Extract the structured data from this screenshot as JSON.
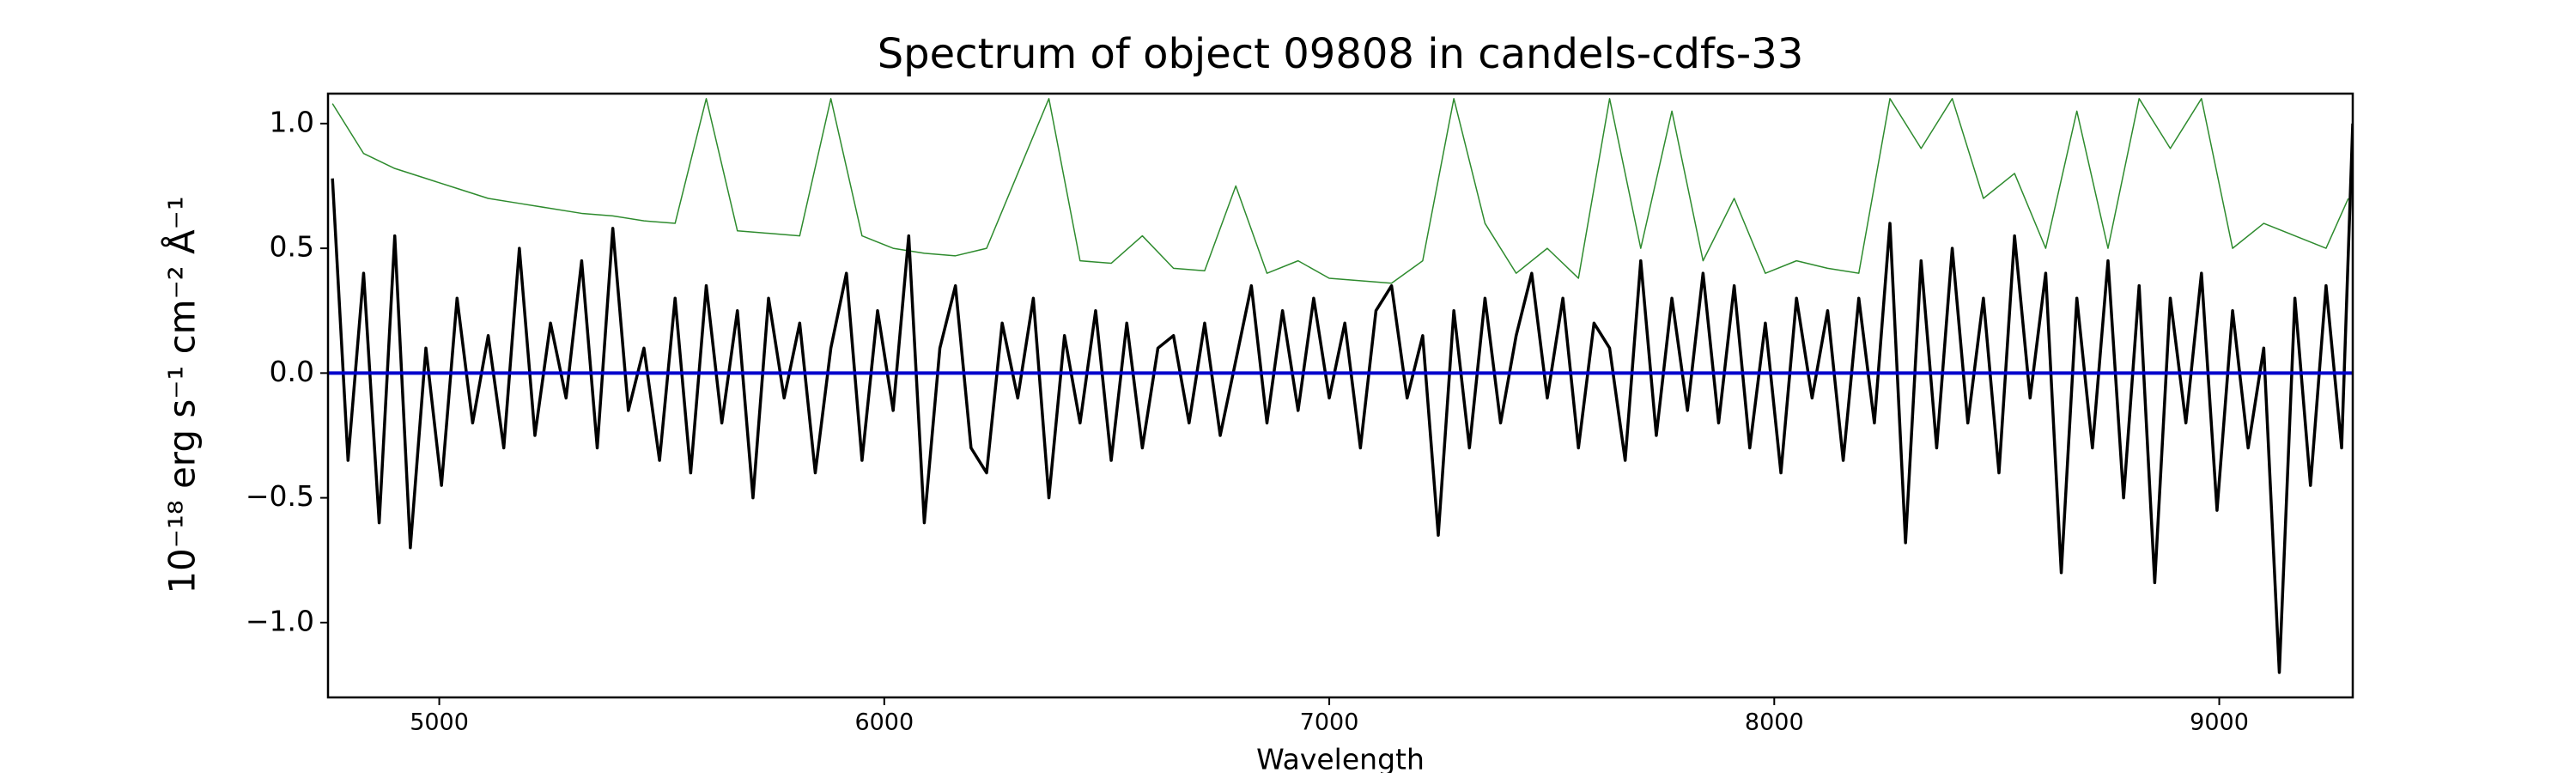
{
  "chart_data": {
    "type": "line",
    "title": "Spectrum of object 09808 in candels-cdfs-33",
    "xlabel": "Wavelength",
    "ylabel": "10⁻¹⁸ erg s⁻¹ cm⁻² Å⁻¹",
    "xlim": [
      4750,
      9300
    ],
    "ylim": [
      -1.3,
      1.12
    ],
    "xticks": [
      5000,
      6000,
      7000,
      8000,
      9000
    ],
    "yticks": [
      {
        "value": -1.0,
        "label": "−1.0"
      },
      {
        "value": -0.5,
        "label": "−0.5"
      },
      {
        "value": 0.0,
        "label": "0.0"
      },
      {
        "value": 0.5,
        "label": "0.5"
      },
      {
        "value": 1.0,
        "label": "1.0"
      }
    ],
    "series": [
      {
        "color": "#2e8b2e",
        "width": 1.5,
        "x": [
          4760,
          4830,
          4900,
          4970,
          5040,
          5110,
          5180,
          5250,
          5320,
          5390,
          5460,
          5530,
          5600,
          5670,
          5740,
          5810,
          5880,
          5950,
          6020,
          6090,
          6160,
          6230,
          6300,
          6370,
          6440,
          6510,
          6580,
          6650,
          6720,
          6790,
          6860,
          6930,
          7000,
          7070,
          7140,
          7210,
          7280,
          7350,
          7420,
          7490,
          7560,
          7630,
          7700,
          7770,
          7840,
          7910,
          7980,
          8050,
          8120,
          8190,
          8260,
          8330,
          8400,
          8470,
          8540,
          8610,
          8680,
          8750,
          8820,
          8890,
          8960,
          9030,
          9100,
          9170,
          9240,
          9290
        ],
        "values": [
          1.08,
          0.88,
          0.82,
          0.78,
          0.74,
          0.7,
          0.68,
          0.66,
          0.64,
          0.63,
          0.61,
          0.6,
          1.1,
          0.57,
          0.56,
          0.55,
          1.1,
          0.55,
          0.5,
          0.48,
          0.47,
          0.5,
          0.8,
          1.1,
          0.45,
          0.44,
          0.55,
          0.42,
          0.41,
          0.75,
          0.4,
          0.45,
          0.38,
          0.37,
          0.36,
          0.45,
          1.1,
          0.6,
          0.4,
          0.5,
          0.38,
          1.1,
          0.5,
          1.05,
          0.45,
          0.7,
          0.4,
          0.45,
          0.42,
          0.4,
          1.1,
          0.9,
          1.1,
          0.7,
          0.8,
          0.5,
          1.05,
          0.5,
          1.1,
          0.9,
          1.1,
          0.5,
          0.6,
          0.55,
          0.5,
          0.7
        ]
      },
      {
        "color": "#000000",
        "width": 3.5,
        "x": [
          4760,
          4795,
          4830,
          4865,
          4900,
          4935,
          4970,
          5005,
          5040,
          5075,
          5110,
          5145,
          5180,
          5215,
          5250,
          5285,
          5320,
          5355,
          5390,
          5425,
          5460,
          5495,
          5530,
          5565,
          5600,
          5635,
          5670,
          5705,
          5740,
          5775,
          5810,
          5845,
          5880,
          5915,
          5950,
          5985,
          6020,
          6055,
          6090,
          6125,
          6160,
          6195,
          6230,
          6265,
          6300,
          6335,
          6370,
          6405,
          6440,
          6475,
          6510,
          6545,
          6580,
          6615,
          6650,
          6685,
          6720,
          6755,
          6790,
          6825,
          6860,
          6895,
          6930,
          6965,
          7000,
          7035,
          7070,
          7105,
          7140,
          7175,
          7210,
          7245,
          7280,
          7315,
          7350,
          7385,
          7420,
          7455,
          7490,
          7525,
          7560,
          7595,
          7630,
          7665,
          7700,
          7735,
          7770,
          7805,
          7840,
          7875,
          7910,
          7945,
          7980,
          8015,
          8050,
          8085,
          8120,
          8155,
          8190,
          8225,
          8260,
          8295,
          8330,
          8365,
          8400,
          8435,
          8470,
          8505,
          8540,
          8575,
          8610,
          8645,
          8680,
          8715,
          8750,
          8785,
          8820,
          8855,
          8890,
          8925,
          8960,
          8995,
          9030,
          9065,
          9100,
          9135,
          9170,
          9205,
          9240,
          9275,
          9300
        ],
        "values": [
          0.78,
          -0.35,
          0.4,
          -0.6,
          0.55,
          -0.7,
          0.1,
          -0.45,
          0.3,
          -0.2,
          0.15,
          -0.3,
          0.5,
          -0.25,
          0.2,
          -0.1,
          0.45,
          -0.3,
          0.58,
          -0.15,
          0.1,
          -0.35,
          0.3,
          -0.4,
          0.35,
          -0.2,
          0.25,
          -0.5,
          0.3,
          -0.1,
          0.2,
          -0.4,
          0.1,
          0.4,
          -0.35,
          0.25,
          -0.15,
          0.55,
          -0.6,
          0.1,
          0.35,
          -0.3,
          -0.4,
          0.2,
          -0.1,
          0.3,
          -0.5,
          0.15,
          -0.2,
          0.25,
          -0.35,
          0.2,
          -0.3,
          0.1,
          0.15,
          -0.2,
          0.2,
          -0.25,
          0.05,
          0.35,
          -0.2,
          0.25,
          -0.15,
          0.3,
          -0.1,
          0.2,
          -0.3,
          0.25,
          0.35,
          -0.1,
          0.15,
          -0.65,
          0.25,
          -0.3,
          0.3,
          -0.2,
          0.15,
          0.4,
          -0.1,
          0.3,
          -0.3,
          0.2,
          0.1,
          -0.35,
          0.45,
          -0.25,
          0.3,
          -0.15,
          0.4,
          -0.2,
          0.35,
          -0.3,
          0.2,
          -0.4,
          0.3,
          -0.1,
          0.25,
          -0.35,
          0.3,
          -0.2,
          0.6,
          -0.68,
          0.45,
          -0.3,
          0.5,
          -0.2,
          0.3,
          -0.4,
          0.55,
          -0.1,
          0.4,
          -0.8,
          0.3,
          -0.3,
          0.45,
          -0.5,
          0.35,
          -0.84,
          0.3,
          -0.2,
          0.4,
          -0.55,
          0.25,
          -0.3,
          0.1,
          -1.2,
          0.3,
          -0.45,
          0.35,
          -0.3,
          1.0
        ]
      },
      {
        "color": "#0000cc",
        "width": 4,
        "x": [
          4750,
          9300
        ],
        "values": [
          0,
          0
        ]
      }
    ]
  }
}
